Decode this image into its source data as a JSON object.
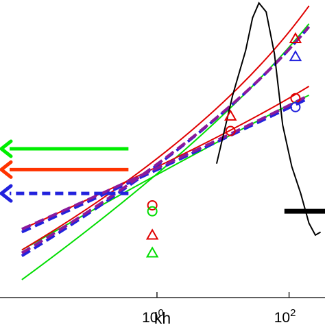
{
  "chart_data": {
    "type": "line",
    "xscale": "log",
    "xlim": [
      0.0042,
      350
    ],
    "ylim": [
      0,
      1
    ],
    "grid": false,
    "xlabel": "kh",
    "ylabel": "",
    "title": "",
    "x_ticks": [
      {
        "value": 1,
        "base": "10",
        "exp": "0"
      },
      {
        "value": 100,
        "base": "10",
        "exp": "2"
      }
    ],
    "series": [
      {
        "color": "#00dd00",
        "dash": "solid",
        "points": [
          [
            0.009,
            0.06
          ],
          [
            8,
            0.54
          ],
          [
            200,
            0.92
          ]
        ]
      },
      {
        "color": "#00dd00",
        "dash": "solid",
        "points": [
          [
            0.009,
            0.16
          ],
          [
            8,
            0.53
          ],
          [
            200,
            0.68
          ]
        ]
      },
      {
        "color": "#e00000",
        "dash": "solid",
        "points": [
          [
            0.009,
            0.16
          ],
          [
            8,
            0.55
          ],
          [
            200,
            0.98
          ]
        ]
      },
      {
        "color": "#e00000",
        "dash": "solid",
        "points": [
          [
            0.009,
            0.23
          ],
          [
            8,
            0.52
          ],
          [
            200,
            0.71
          ]
        ]
      },
      {
        "color": "#2222dd",
        "dash": "dashed",
        "points": [
          [
            0.009,
            0.14
          ],
          [
            8,
            0.54
          ],
          [
            200,
            0.91
          ]
        ]
      },
      {
        "color": "#2222dd",
        "dash": "dashed",
        "points": [
          [
            0.009,
            0.22
          ],
          [
            8,
            0.52
          ],
          [
            200,
            0.67
          ]
        ]
      },
      {
        "color": "#8b1a9b",
        "dash": "dashed",
        "points": [
          [
            0.009,
            0.15
          ],
          [
            8,
            0.54
          ],
          [
            200,
            0.91
          ]
        ]
      },
      {
        "color": "#8b1a9b",
        "dash": "dashed",
        "points": [
          [
            0.009,
            0.23
          ],
          [
            8,
            0.52
          ],
          [
            200,
            0.68
          ]
        ]
      },
      {
        "color": "#000000",
        "dash": "solid",
        "points": [
          [
            8,
            0.45
          ],
          [
            14,
            0.68
          ],
          [
            22,
            0.83
          ],
          [
            28,
            0.94
          ],
          [
            35,
            0.99
          ],
          [
            45,
            0.96
          ],
          [
            60,
            0.82
          ],
          [
            80,
            0.58
          ],
          [
            110,
            0.44
          ],
          [
            150,
            0.35
          ],
          [
            200,
            0.25
          ],
          [
            250,
            0.21
          ],
          [
            300,
            0.22
          ]
        ]
      }
    ],
    "markers": [
      {
        "shape": "circle",
        "color": "#e00000",
        "x": 0.85,
        "y": 0.31
      },
      {
        "shape": "circle",
        "color": "#00dd00",
        "x": 0.85,
        "y": 0.29
      },
      {
        "shape": "triangle",
        "color": "#e00000",
        "x": 0.85,
        "y": 0.21
      },
      {
        "shape": "triangle",
        "color": "#00dd00",
        "x": 0.85,
        "y": 0.15
      },
      {
        "shape": "triangle",
        "color": "#e00000",
        "x": 13,
        "y": 0.61
      },
      {
        "shape": "circle",
        "color": "#e00000",
        "x": 13,
        "y": 0.56
      },
      {
        "shape": "triangle",
        "color": "#e00000",
        "x": 125,
        "y": 0.87
      },
      {
        "shape": "triangle",
        "color": "#2222dd",
        "x": 125,
        "y": 0.81
      },
      {
        "shape": "circle",
        "color": "#e00000",
        "x": 125,
        "y": 0.67
      },
      {
        "shape": "circle",
        "color": "#2222dd",
        "x": 125,
        "y": 0.64
      }
    ],
    "arrows": [
      {
        "color": "#00ee00",
        "dash": "solid",
        "x_from": 0.37,
        "x_to": 0.0042,
        "y": 0.5
      },
      {
        "color": "#ff3300",
        "dash": "solid",
        "x_from": 0.37,
        "x_to": 0.0042,
        "y": 0.43
      },
      {
        "color": "#2222dd",
        "dash": "dashed",
        "x_from": 0.37,
        "x_to": 0.0042,
        "y": 0.35
      }
    ],
    "bar": {
      "color": "#000000",
      "x_from": 85,
      "x_to": 350,
      "y": 0.29
    }
  }
}
